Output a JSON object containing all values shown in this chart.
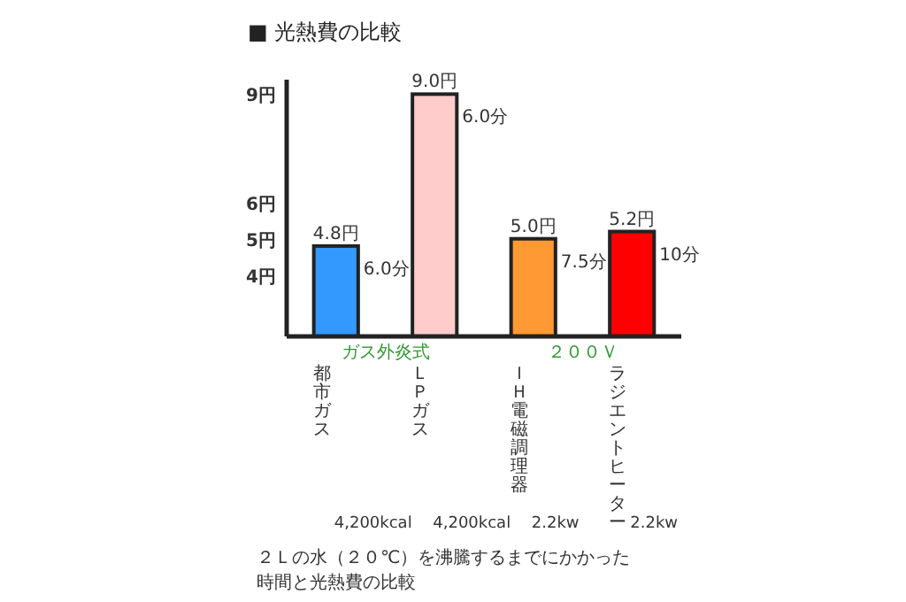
{
  "chart_data": {
    "type": "bar",
    "title": "■ 光熱費の比較",
    "categories": [
      "都市ガス",
      "ＬＰガス",
      "ＩＨ電磁調理器",
      "ラジエントヒーター"
    ],
    "values": [
      4.8,
      9.0,
      5.0,
      5.2
    ],
    "colors": [
      "#3399ff",
      "#ffcccc",
      "#ff9933",
      "#ff0000"
    ],
    "value_labels": [
      "4.8円",
      "9.0円",
      "5.0円",
      "5.2円"
    ],
    "ylim": [
      2.3,
      9.4
    ],
    "yticks": [
      {
        "value": 4,
        "label": "4円"
      },
      {
        "value": 5,
        "label": "5円"
      },
      {
        "value": 6,
        "label": "6円"
      },
      {
        "value": 9,
        "label": "9円"
      }
    ],
    "annotations": [
      {
        "text": "6.0分",
        "x": "都市ガス",
        "y": 4.8
      },
      {
        "text": "6.0分",
        "x": "ＬＰガス",
        "y": 9.0
      },
      {
        "text": "7.5分",
        "x": "ＩＨ電磁調理器",
        "y": 5.0
      },
      {
        "text": "10分",
        "x": "ラジエントヒーター",
        "y": 5.2
      },
      "ガス外炎式",
      "２００Ｖ",
      "4,200kcal",
      "4,200kcal",
      "2.2kw",
      "2.2kw",
      "２Ｌの水（２０℃）を沸騰するまでにかかった",
      "時間と光熱費の比較"
    ]
  }
}
